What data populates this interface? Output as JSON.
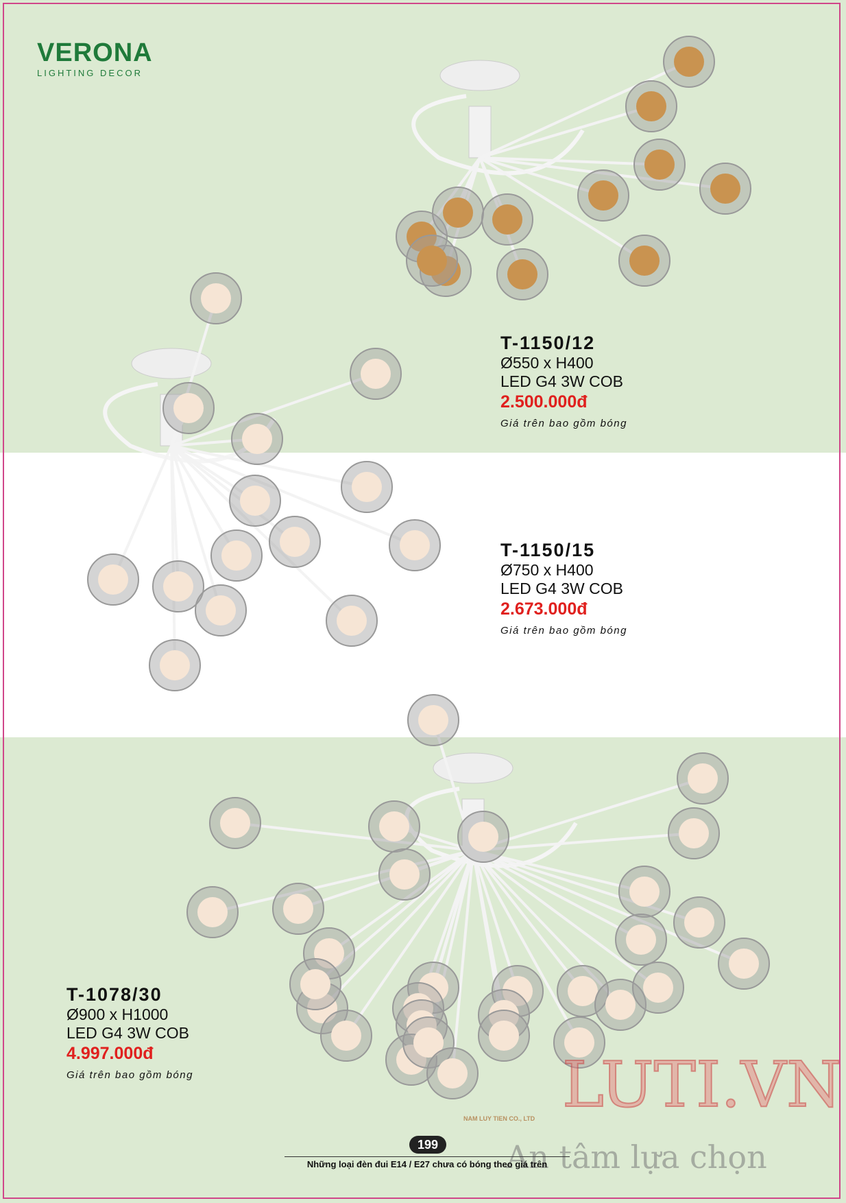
{
  "brand": {
    "name": "VERONA",
    "tagline": "LIGHTING DECOR"
  },
  "products": [
    {
      "code": "T-1150/12",
      "size": "Ø550 x H400",
      "light": "LED G4 3W COB",
      "price": "2.500.000đ",
      "note": "Giá trên bao gồm bóng"
    },
    {
      "code": "T-1150/15",
      "size": "Ø750 x H400",
      "light": "LED G4 3W COB",
      "price": "2.673.000đ",
      "note": "Giá trên bao gồm bóng"
    },
    {
      "code": "T-1078/30",
      "size": "Ø900 x H1000",
      "light": "LED G4 3W COB",
      "price": "4.997.000đ",
      "note": "Giá trên bao gồm bóng"
    }
  ],
  "footer": {
    "page": "199",
    "note": "Những loại đèn đui E14 / E27 chưa có bóng theo giá trên"
  },
  "watermark": {
    "brand": "LUTI.VN",
    "company": "NAM LUY TIEN CO., LTD",
    "slogan": "An tâm lựa chọn"
  }
}
